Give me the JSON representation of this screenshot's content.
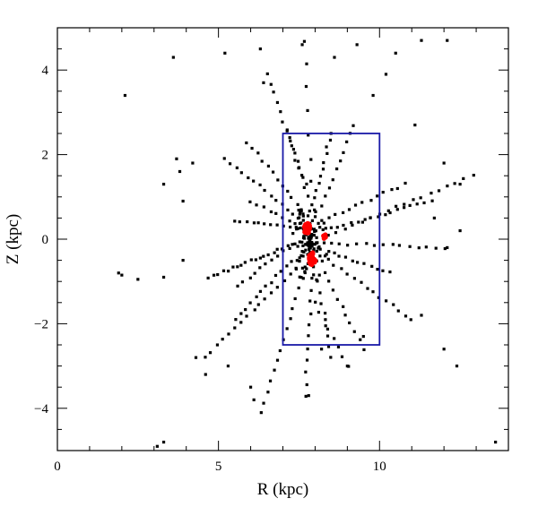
{
  "chart_data": {
    "type": "scatter",
    "xlabel": "R (kpc)",
    "ylabel": "Z (kpc)",
    "xlim": [
      0,
      14
    ],
    "ylim": [
      -5,
      5
    ],
    "x_ticks_major": [
      0,
      5,
      10
    ],
    "y_ticks_major": [
      -4,
      -2,
      0,
      2,
      4
    ],
    "x_ticks_minor_step": 1,
    "y_ticks_minor_step": 0.5,
    "grid": false,
    "colors": {
      "points": "#000000",
      "center": "#ff0000",
      "box": "#1a1aa8"
    },
    "box_region": {
      "r_min": 7,
      "r_max": 10,
      "z_min": -2.5,
      "z_max": 2.5
    },
    "red_clusters": [
      {
        "r": 7.75,
        "z": 0.25,
        "spread": 0.1,
        "count": 40
      },
      {
        "r": 7.9,
        "z": -0.45,
        "spread": 0.12,
        "count": 40
      },
      {
        "r": 8.3,
        "z": 0.05,
        "spread": 0.05,
        "count": 8
      }
    ],
    "streaks": [
      {
        "from": [
          7.7,
          0.0
        ],
        "to": [
          4.7,
          -0.9
        ],
        "n": 22
      },
      {
        "from": [
          7.6,
          0.25
        ],
        "to": [
          5.5,
          0.45
        ],
        "n": 12
      },
      {
        "from": [
          7.5,
          0.5
        ],
        "to": [
          5.2,
          1.9
        ],
        "n": 14
      },
      {
        "from": [
          7.6,
          0.7
        ],
        "to": [
          5.9,
          2.3
        ],
        "n": 12
      },
      {
        "from": [
          7.8,
          1.0
        ],
        "to": [
          6.5,
          3.9
        ],
        "n": 14
      },
      {
        "from": [
          7.9,
          0.8
        ],
        "to": [
          7.7,
          4.7
        ],
        "n": 8
      },
      {
        "from": [
          8.0,
          1.0
        ],
        "to": [
          8.5,
          2.5
        ],
        "n": 10
      },
      {
        "from": [
          8.2,
          0.8
        ],
        "to": [
          9.2,
          2.7
        ],
        "n": 10
      },
      {
        "from": [
          8.4,
          0.5
        ],
        "to": [
          10.8,
          1.3
        ],
        "n": 12
      },
      {
        "from": [
          8.5,
          0.25
        ],
        "to": [
          11.6,
          0.9
        ],
        "n": 16
      },
      {
        "from": [
          8.4,
          0.1
        ],
        "to": [
          12.9,
          1.5
        ],
        "n": 18
      },
      {
        "from": [
          8.5,
          -0.1
        ],
        "to": [
          12.0,
          -0.2
        ],
        "n": 14
      },
      {
        "from": [
          8.4,
          -0.5
        ],
        "to": [
          11.0,
          -1.9
        ],
        "n": 14
      },
      {
        "from": [
          8.3,
          -0.8
        ],
        "to": [
          9.5,
          -2.6
        ],
        "n": 10
      },
      {
        "from": [
          8.1,
          -1.0
        ],
        "to": [
          8.5,
          -2.8
        ],
        "n": 8
      },
      {
        "from": [
          7.9,
          -1.2
        ],
        "to": [
          7.7,
          -3.7
        ],
        "n": 10
      },
      {
        "from": [
          7.6,
          -0.9
        ],
        "to": [
          6.3,
          -4.1
        ],
        "n": 14
      },
      {
        "from": [
          7.4,
          -0.7
        ],
        "to": [
          4.6,
          -2.8
        ],
        "n": 16
      },
      {
        "from": [
          7.3,
          -0.5
        ],
        "to": [
          5.5,
          -1.9
        ],
        "n": 12
      },
      {
        "from": [
          7.2,
          -0.2
        ],
        "to": [
          5.6,
          -1.1
        ],
        "n": 10
      },
      {
        "from": [
          7.4,
          0.35
        ],
        "to": [
          6.0,
          0.9
        ],
        "n": 8
      },
      {
        "from": [
          8.2,
          -0.25
        ],
        "to": [
          10.3,
          -0.8
        ],
        "n": 12
      },
      {
        "from": [
          7.7,
          1.3
        ],
        "to": [
          7.1,
          2.6
        ],
        "n": 8
      },
      {
        "from": [
          8.0,
          -1.5
        ],
        "to": [
          9.0,
          -3.0
        ],
        "n": 8
      }
    ],
    "scattered_points": [
      [
        2.1,
        3.4
      ],
      [
        3.6,
        4.3
      ],
      [
        5.2,
        4.4
      ],
      [
        6.3,
        4.5
      ],
      [
        7.6,
        4.6
      ],
      [
        8.6,
        4.3
      ],
      [
        9.3,
        4.6
      ],
      [
        10.5,
        4.4
      ],
      [
        11.3,
        4.7
      ],
      [
        12.1,
        4.7
      ],
      [
        10.2,
        3.9
      ],
      [
        11.1,
        2.7
      ],
      [
        9.8,
        3.4
      ],
      [
        6.4,
        3.7
      ],
      [
        4.2,
        1.8
      ],
      [
        3.7,
        1.9
      ],
      [
        3.3,
        1.3
      ],
      [
        3.8,
        1.6
      ],
      [
        12.0,
        1.8
      ],
      [
        12.5,
        1.3
      ],
      [
        3.9,
        0.9
      ],
      [
        3.3,
        -0.9
      ],
      [
        1.9,
        -0.8
      ],
      [
        2.0,
        -0.85
      ],
      [
        2.5,
        -0.95
      ],
      [
        3.9,
        -0.5
      ],
      [
        4.3,
        -2.8
      ],
      [
        4.6,
        -3.2
      ],
      [
        5.3,
        -3.0
      ],
      [
        6.0,
        -3.5
      ],
      [
        6.1,
        -3.8
      ],
      [
        12.0,
        -2.6
      ],
      [
        12.4,
        -3.0
      ],
      [
        11.3,
        -1.8
      ],
      [
        13.6,
        -4.8
      ],
      [
        3.1,
        -4.9
      ],
      [
        3.3,
        -4.8
      ],
      [
        9.5,
        -2.3
      ],
      [
        9.0,
        -3.0
      ],
      [
        7.8,
        -3.7
      ],
      [
        8.2,
        -2.6
      ],
      [
        12.1,
        -0.2
      ],
      [
        12.5,
        0.2
      ],
      [
        11.7,
        0.5
      ]
    ]
  }
}
